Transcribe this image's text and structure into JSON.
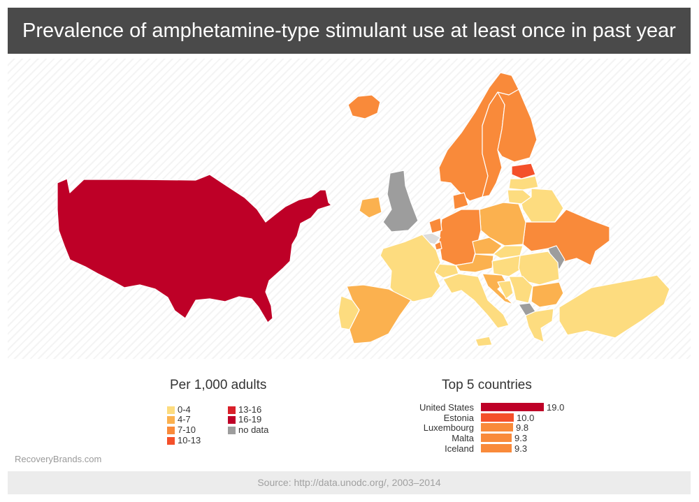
{
  "title": "Prevalence of amphetamine-type stimulant use at least once in past year",
  "legend": {
    "title": "Per 1,000 adults",
    "items": [
      {
        "label": "0-4",
        "color": "#fddc7f"
      },
      {
        "label": "4-7",
        "color": "#fbb14f"
      },
      {
        "label": "7-10",
        "color": "#f98a3a"
      },
      {
        "label": "10-13",
        "color": "#f4502a"
      },
      {
        "label": "13-16",
        "color": "#d9202a"
      },
      {
        "label": "16-19",
        "color": "#be0027"
      },
      {
        "label": "no data",
        "color": "#9d9d9d"
      }
    ]
  },
  "top5": {
    "title": "Top 5 countries",
    "rows": [
      {
        "country": "United States",
        "value": 19.0,
        "value_label": "19.0",
        "color": "#be0027"
      },
      {
        "country": "Estonia",
        "value": 10.0,
        "value_label": "10.0",
        "color": "#f4502a"
      },
      {
        "country": "Luxembourg",
        "value": 9.8,
        "value_label": "9.8",
        "color": "#f98a3a"
      },
      {
        "country": "Malta",
        "value": 9.3,
        "value_label": "9.3",
        "color": "#f98a3a"
      },
      {
        "country": "Iceland",
        "value": 9.3,
        "value_label": "9.3",
        "color": "#f98a3a"
      }
    ]
  },
  "brand": "RecoveryBrands.com",
  "source": "Source: http://data.unodc.org/, 2003–2014",
  "map_categories": {
    "united-states": "16-19",
    "estonia": "10-13",
    "luxembourg": "7-10",
    "iceland": "7-10",
    "norway": "7-10",
    "sweden": "7-10",
    "finland": "7-10",
    "germany": "7-10",
    "netherlands": "7-10",
    "denmark": "7-10",
    "ukraine": "7-10",
    "spain": "4-7",
    "poland": "4-7",
    "ireland": "4-7",
    "bulgaria": "4-7",
    "croatia": "4-7",
    "czechia": "4-7",
    "austria": "4-7",
    "france": "0-4",
    "italy": "0-4",
    "portugal": "0-4",
    "turkey": "0-4",
    "greece": "0-4",
    "romania": "0-4",
    "belarus": "0-4",
    "latvia": "0-4",
    "lithuania": "0-4",
    "hungary": "0-4",
    "switzerland": "0-4",
    "slovakia": "0-4",
    "serbia": "0-4",
    "bosnia": "0-4",
    "united-kingdom": "no data",
    "moldova": "no data",
    "albania": "no data"
  }
}
